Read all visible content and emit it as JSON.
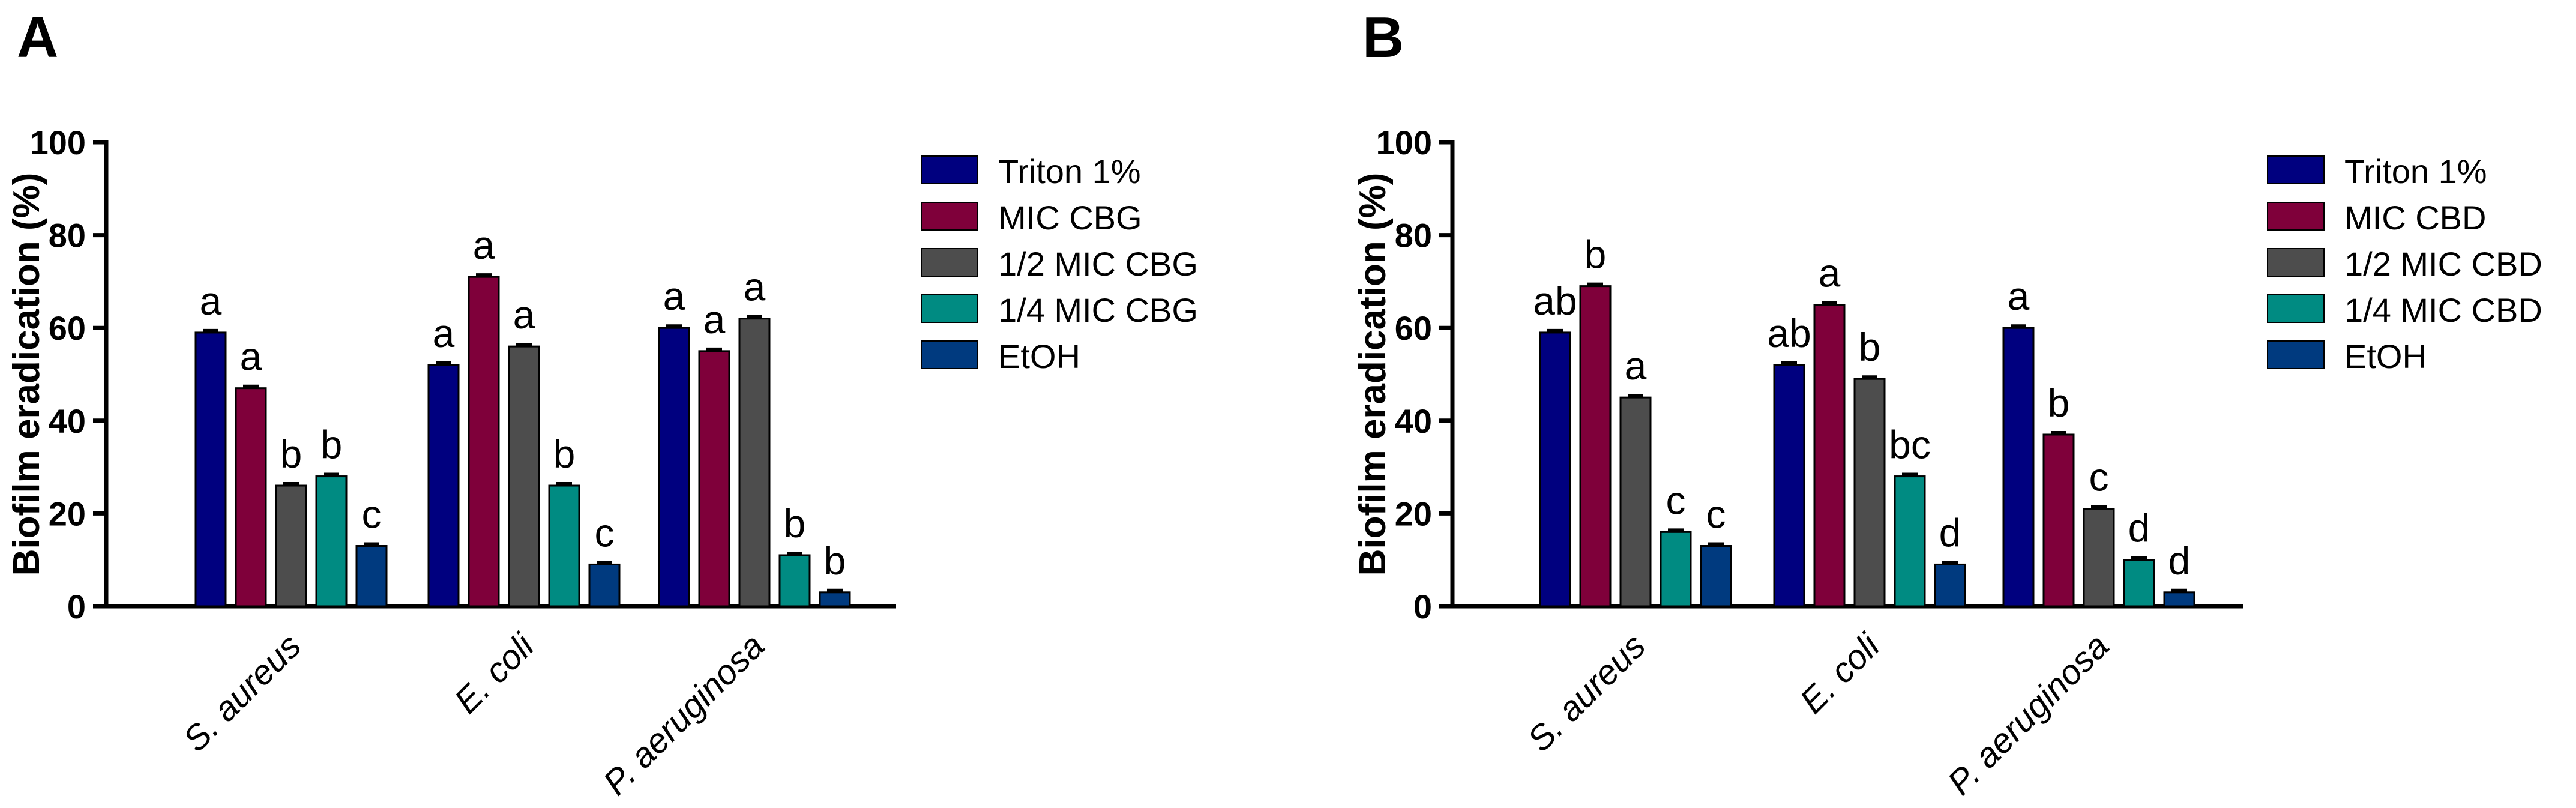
{
  "chart_data": [
    {
      "type": "bar",
      "panel_label": "A",
      "title": "",
      "xlabel": "",
      "ylabel": "Biofilm eradication (%)",
      "ylim": [
        0,
        100
      ],
      "yticks": [
        "0",
        "20",
        "40",
        "60",
        "80",
        "100"
      ],
      "categories": [
        "S. aureus",
        "E. coli",
        "P. aeruginosa"
      ],
      "legend_position": "right",
      "series": [
        {
          "name": "Triton 1%",
          "color": "#00007f",
          "values": [
            59,
            52,
            60
          ],
          "labels": [
            "a",
            "a",
            "a"
          ]
        },
        {
          "name": "MIC CBG",
          "color": "#7f003a",
          "values": [
            47,
            71,
            55
          ],
          "labels": [
            "a",
            "a",
            "a"
          ]
        },
        {
          "name": "1/2 MIC CBG",
          "color": "#4d4d4d",
          "values": [
            26,
            56,
            62
          ],
          "labels": [
            "b",
            "a",
            "a"
          ]
        },
        {
          "name": "1/4 MIC CBG",
          "color": "#008b82",
          "values": [
            28,
            26,
            11
          ],
          "labels": [
            "b",
            "b",
            "b"
          ]
        },
        {
          "name": "EtOH",
          "color": "#003a7f",
          "values": [
            13,
            9,
            3
          ],
          "labels": [
            "c",
            "c",
            "b"
          ]
        }
      ]
    },
    {
      "type": "bar",
      "panel_label": "B",
      "title": "",
      "xlabel": "",
      "ylabel": "Biofilm eradication (%)",
      "ylim": [
        0,
        100
      ],
      "yticks": [
        "0",
        "20",
        "40",
        "60",
        "80",
        "100"
      ],
      "categories": [
        "S. aureus",
        "E. coli",
        "P. aeruginosa"
      ],
      "legend_position": "right",
      "series": [
        {
          "name": "Triton 1%",
          "color": "#00007f",
          "values": [
            59,
            52,
            60
          ],
          "labels": [
            "ab",
            "ab",
            "a"
          ]
        },
        {
          "name": "MIC CBD",
          "color": "#7f003a",
          "values": [
            69,
            65,
            37
          ],
          "labels": [
            "b",
            "a",
            "b"
          ]
        },
        {
          "name": "1/2 MIC CBD",
          "color": "#4d4d4d",
          "values": [
            45,
            49,
            21
          ],
          "labels": [
            "a",
            "b",
            "c"
          ]
        },
        {
          "name": "1/4 MIC CBD",
          "color": "#008b82",
          "values": [
            16,
            28,
            10
          ],
          "labels": [
            "c",
            "bc",
            "d"
          ]
        },
        {
          "name": "EtOH",
          "color": "#003a7f",
          "values": [
            13,
            9,
            3
          ],
          "labels": [
            "c",
            "d",
            "d"
          ]
        }
      ]
    }
  ]
}
